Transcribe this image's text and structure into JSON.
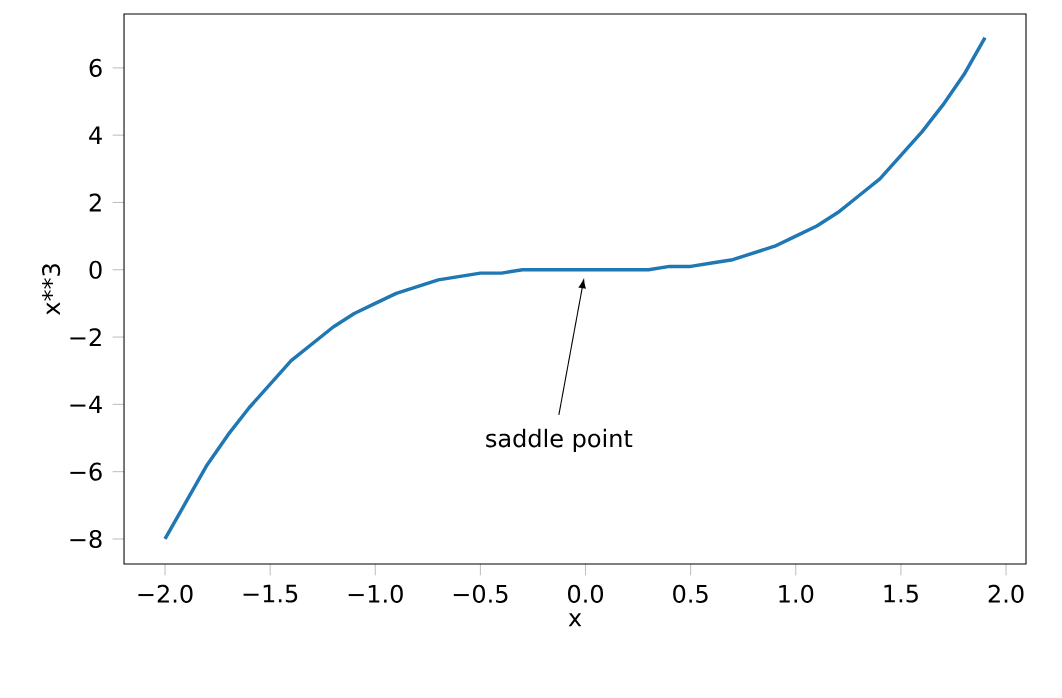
{
  "chart_data": {
    "type": "line",
    "xlabel": "x",
    "ylabel": "x**3",
    "x": [
      -2.0,
      -1.9,
      -1.8,
      -1.7,
      -1.6,
      -1.5,
      -1.4,
      -1.3,
      -1.2,
      -1.1,
      -1.0,
      -0.9,
      -0.8,
      -0.7,
      -0.6,
      -0.5,
      -0.4,
      -0.3,
      -0.2,
      -0.1,
      0.0,
      0.1,
      0.2,
      0.3,
      0.4,
      0.5,
      0.6,
      0.7,
      0.8,
      0.9,
      1.0,
      1.1,
      1.2,
      1.3,
      1.4,
      1.5,
      1.6,
      1.7,
      1.8,
      1.9
    ],
    "series": [
      {
        "color": "#1f77b4",
        "values": [
          -8.0,
          -6.9,
          -5.8,
          -4.9,
          -4.1,
          -3.4,
          -2.7,
          -2.2,
          -1.7,
          -1.3,
          -1.0,
          -0.7,
          -0.5,
          -0.3,
          -0.2,
          -0.1,
          -0.1,
          0.0,
          0.0,
          0.0,
          0.0,
          0.0,
          0.0,
          0.0,
          0.1,
          0.1,
          0.2,
          0.3,
          0.5,
          0.7,
          1.0,
          1.3,
          1.7,
          2.2,
          2.7,
          3.4,
          4.1,
          4.9,
          5.8,
          6.9
        ]
      }
    ],
    "xlim": [
      -2.195,
      2.095
    ],
    "ylim": [
      -8.743,
      7.602
    ],
    "xticks": [
      {
        "value": -2.0,
        "label": "−2.0"
      },
      {
        "value": -1.5,
        "label": "−1.5"
      },
      {
        "value": -1.0,
        "label": "−1.0"
      },
      {
        "value": -0.5,
        "label": "−0.5"
      },
      {
        "value": 0.0,
        "label": "0.0"
      },
      {
        "value": 0.5,
        "label": "0.5"
      },
      {
        "value": 1.0,
        "label": "1.0"
      },
      {
        "value": 1.5,
        "label": "1.5"
      },
      {
        "value": 2.0,
        "label": "2.0"
      }
    ],
    "yticks": [
      {
        "value": -8,
        "label": "−8"
      },
      {
        "value": -6,
        "label": "−6"
      },
      {
        "value": -4,
        "label": "−4"
      },
      {
        "value": -2,
        "label": "−2"
      },
      0,
      2,
      4,
      6
    ],
    "marker": "none",
    "line_style": "solid",
    "annotations": [
      {
        "text": "saddle point",
        "x": 0,
        "y": 0
      }
    ]
  }
}
